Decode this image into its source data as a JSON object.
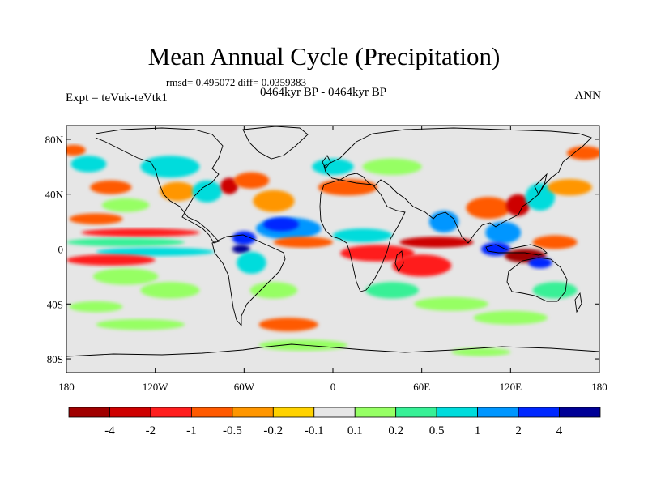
{
  "figure": {
    "title": "Mean Annual Cycle (Precipitation)",
    "stats": "rmsd= 0.495072 diff= 0.0359383",
    "period": "0464kyr BP - 0464kyr BP",
    "experiment": "Expt = teVuk-teVtk1",
    "season": "ANN"
  },
  "axes": {
    "lon_range": [
      -180,
      180
    ],
    "lat_range": [
      -90,
      90
    ],
    "x_ticks": [
      {
        "value": -180,
        "label": "180"
      },
      {
        "value": -120,
        "label": "120W"
      },
      {
        "value": -60,
        "label": "60W"
      },
      {
        "value": 0,
        "label": "0"
      },
      {
        "value": 60,
        "label": "60E"
      },
      {
        "value": 120,
        "label": "120E"
      },
      {
        "value": 180,
        "label": "180"
      }
    ],
    "y_ticks": [
      {
        "value": 80,
        "label": "80N"
      },
      {
        "value": 40,
        "label": "40N"
      },
      {
        "value": 0,
        "label": "0"
      },
      {
        "value": -40,
        "label": "40S"
      },
      {
        "value": -80,
        "label": "80S"
      }
    ]
  },
  "colorbar": {
    "colors": [
      "#a00000",
      "#cd0000",
      "#ff1e1e",
      "#ff5a00",
      "#ff9600",
      "#ffd200",
      "#e6e6e6",
      "#96ff64",
      "#37f096",
      "#00dcdc",
      "#0096ff",
      "#0028ff",
      "#000096"
    ],
    "labels": [
      "-4",
      "-2",
      "-1",
      "-0.5",
      "-0.2",
      "-0.1",
      "0.1",
      "0.2",
      "0.5",
      "1",
      "2",
      "4"
    ]
  },
  "field": {
    "background": "#e6e6e6",
    "anomalies": [
      {
        "lon": -175,
        "lat": 72,
        "rx": 8,
        "ry": 4,
        "level": 3
      },
      {
        "lon": -165,
        "lat": 62,
        "rx": 12,
        "ry": 6,
        "level": 9
      },
      {
        "lon": -150,
        "lat": 45,
        "rx": 14,
        "ry": 5,
        "level": 3
      },
      {
        "lon": -140,
        "lat": 32,
        "rx": 16,
        "ry": 5,
        "level": 7
      },
      {
        "lon": -160,
        "lat": 22,
        "rx": 18,
        "ry": 4,
        "level": 3
      },
      {
        "lon": -130,
        "lat": 12,
        "rx": 40,
        "ry": 3,
        "level": 2
      },
      {
        "lon": -140,
        "lat": 5,
        "rx": 40,
        "ry": 3,
        "level": 8
      },
      {
        "lon": -120,
        "lat": -2,
        "rx": 40,
        "ry": 3,
        "level": 9
      },
      {
        "lon": -150,
        "lat": -8,
        "rx": 30,
        "ry": 4,
        "level": 2
      },
      {
        "lon": -140,
        "lat": -20,
        "rx": 22,
        "ry": 6,
        "level": 7
      },
      {
        "lon": -110,
        "lat": -30,
        "rx": 20,
        "ry": 6,
        "level": 7
      },
      {
        "lon": -160,
        "lat": -42,
        "rx": 18,
        "ry": 4,
        "level": 7
      },
      {
        "lon": -130,
        "lat": -55,
        "rx": 30,
        "ry": 4,
        "level": 7
      },
      {
        "lon": -110,
        "lat": 60,
        "rx": 20,
        "ry": 8,
        "level": 9
      },
      {
        "lon": -105,
        "lat": 42,
        "rx": 12,
        "ry": 7,
        "level": 4
      },
      {
        "lon": -85,
        "lat": 42,
        "rx": 10,
        "ry": 8,
        "level": 9
      },
      {
        "lon": -70,
        "lat": 46,
        "rx": 6,
        "ry": 6,
        "level": 1
      },
      {
        "lon": -55,
        "lat": 50,
        "rx": 12,
        "ry": 6,
        "level": 3
      },
      {
        "lon": -40,
        "lat": 35,
        "rx": 14,
        "ry": 8,
        "level": 4
      },
      {
        "lon": -30,
        "lat": 15,
        "rx": 22,
        "ry": 8,
        "level": 10
      },
      {
        "lon": -35,
        "lat": 18,
        "rx": 12,
        "ry": 5,
        "level": 11
      },
      {
        "lon": -20,
        "lat": 5,
        "rx": 20,
        "ry": 4,
        "level": 3
      },
      {
        "lon": -60,
        "lat": 8,
        "rx": 8,
        "ry": 5,
        "level": 11
      },
      {
        "lon": -62,
        "lat": 0,
        "rx": 6,
        "ry": 3,
        "level": 12
      },
      {
        "lon": -55,
        "lat": -10,
        "rx": 10,
        "ry": 8,
        "level": 9
      },
      {
        "lon": -40,
        "lat": -30,
        "rx": 16,
        "ry": 6,
        "level": 7
      },
      {
        "lon": -30,
        "lat": -55,
        "rx": 20,
        "ry": 5,
        "level": 3
      },
      {
        "lon": 10,
        "lat": 45,
        "rx": 20,
        "ry": 6,
        "level": 3
      },
      {
        "lon": 0,
        "lat": 60,
        "rx": 14,
        "ry": 6,
        "level": 9
      },
      {
        "lon": 40,
        "lat": 60,
        "rx": 20,
        "ry": 6,
        "level": 7
      },
      {
        "lon": 20,
        "lat": 10,
        "rx": 20,
        "ry": 5,
        "level": 9
      },
      {
        "lon": 30,
        "lat": -3,
        "rx": 25,
        "ry": 6,
        "level": 2
      },
      {
        "lon": 60,
        "lat": -12,
        "rx": 20,
        "ry": 8,
        "level": 2
      },
      {
        "lon": 70,
        "lat": 5,
        "rx": 25,
        "ry": 4,
        "level": 1
      },
      {
        "lon": 40,
        "lat": -30,
        "rx": 18,
        "ry": 6,
        "level": 8
      },
      {
        "lon": 80,
        "lat": -40,
        "rx": 25,
        "ry": 5,
        "level": 7
      },
      {
        "lon": 75,
        "lat": 20,
        "rx": 10,
        "ry": 8,
        "level": 10
      },
      {
        "lon": 105,
        "lat": 30,
        "rx": 15,
        "ry": 8,
        "level": 3
      },
      {
        "lon": 125,
        "lat": 32,
        "rx": 8,
        "ry": 8,
        "level": 1
      },
      {
        "lon": 140,
        "lat": 38,
        "rx": 10,
        "ry": 10,
        "level": 9
      },
      {
        "lon": 115,
        "lat": 12,
        "rx": 12,
        "ry": 8,
        "level": 10
      },
      {
        "lon": 110,
        "lat": 0,
        "rx": 10,
        "ry": 5,
        "level": 11
      },
      {
        "lon": 130,
        "lat": -5,
        "rx": 14,
        "ry": 5,
        "level": 0
      },
      {
        "lon": 140,
        "lat": -10,
        "rx": 8,
        "ry": 4,
        "level": 11
      },
      {
        "lon": 150,
        "lat": 5,
        "rx": 15,
        "ry": 5,
        "level": 3
      },
      {
        "lon": 160,
        "lat": 45,
        "rx": 15,
        "ry": 6,
        "level": 4
      },
      {
        "lon": 150,
        "lat": -30,
        "rx": 15,
        "ry": 6,
        "level": 8
      },
      {
        "lon": 120,
        "lat": -50,
        "rx": 25,
        "ry": 5,
        "level": 7
      },
      {
        "lon": -20,
        "lat": -70,
        "rx": 30,
        "ry": 4,
        "level": 7
      },
      {
        "lon": 100,
        "lat": -75,
        "rx": 20,
        "ry": 3,
        "level": 7
      },
      {
        "lon": 170,
        "lat": 70,
        "rx": 12,
        "ry": 5,
        "level": 3
      }
    ]
  }
}
